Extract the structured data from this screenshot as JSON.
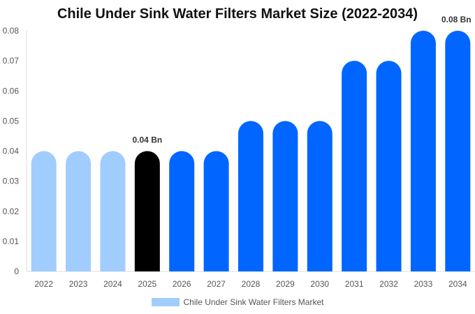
{
  "chart_data": {
    "type": "bar",
    "title": "Chile Under Sink Water Filters Market Size (2022-2034)",
    "categories": [
      "2022",
      "2023",
      "2024",
      "2025",
      "2026",
      "2027",
      "2028",
      "2029",
      "2030",
      "2031",
      "2032",
      "2033",
      "2034"
    ],
    "series": [
      {
        "name": "Chile Under Sink Water Filters Market",
        "values": [
          0.04,
          0.04,
          0.04,
          0.04,
          0.04,
          0.04,
          0.05,
          0.05,
          0.05,
          0.07,
          0.07,
          0.08,
          0.08
        ]
      }
    ],
    "bar_colors": [
      "#a0cdfd",
      "#a0cdfd",
      "#a0cdfd",
      "#000000",
      "#0066ff",
      "#0066ff",
      "#0066ff",
      "#0066ff",
      "#0066ff",
      "#0066ff",
      "#0066ff",
      "#0066ff",
      "#0066ff"
    ],
    "ylim": [
      0,
      0.08
    ],
    "yticks": [
      "0",
      "0.01",
      "0.02",
      "0.03",
      "0.04",
      "0.05",
      "0.06",
      "0.07",
      "0.08"
    ],
    "data_labels": [
      {
        "category": "2025",
        "text": "0.04 Bn"
      },
      {
        "category": "2034",
        "text": "0.08 Bn"
      }
    ],
    "grid": false,
    "legend": "bottom",
    "legend_color": "#a0cdfd"
  }
}
